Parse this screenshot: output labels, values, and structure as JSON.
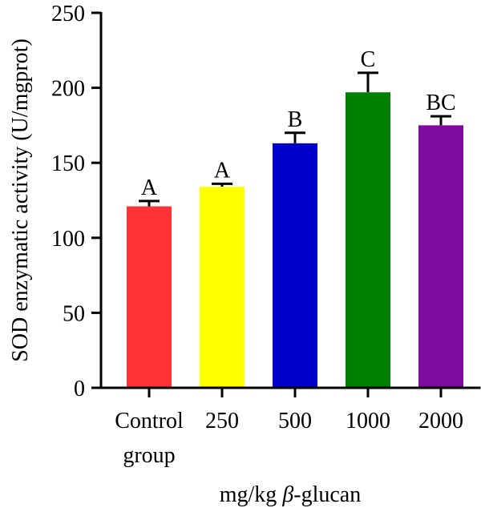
{
  "chart_data": {
    "type": "bar",
    "categories": [
      {
        "line1": "Control",
        "line2": "group"
      },
      {
        "line1": "250",
        "line2": ""
      },
      {
        "line1": "500",
        "line2": ""
      },
      {
        "line1": "1000",
        "line2": ""
      },
      {
        "line1": "2000",
        "line2": ""
      }
    ],
    "values": [
      121,
      134,
      163,
      197,
      175
    ],
    "errors": [
      3.5,
      2,
      7,
      13,
      6
    ],
    "significance_letters": [
      "A",
      "A",
      "B",
      "C",
      "BC"
    ],
    "colors": [
      "#ff3333",
      "#ffff00",
      "#0000cc",
      "#008000",
      "#7f0a9e"
    ],
    "title": "",
    "xlabel_prefix": "mg/kg ",
    "xlabel_symbol": "β",
    "xlabel_suffix": "-glucan",
    "ylabel": "SOD enzymatic activity (U/mgprot)",
    "ylim": [
      0,
      250
    ],
    "yticks": [
      0,
      50,
      100,
      150,
      200,
      250
    ],
    "grid": false
  }
}
